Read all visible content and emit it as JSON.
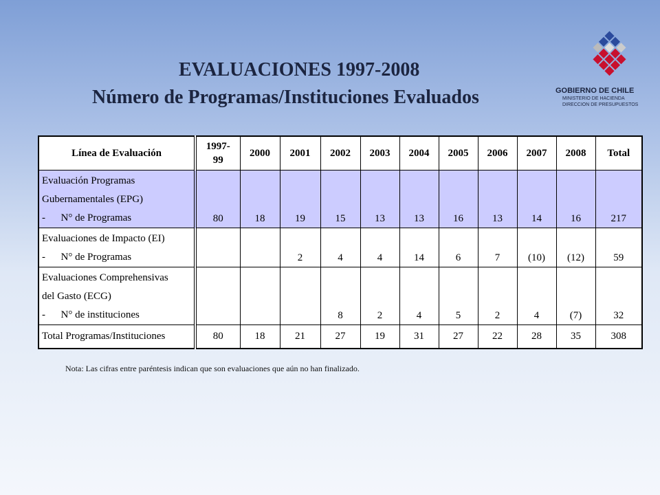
{
  "logo": {
    "name": "GOBIERNO DE CHILE",
    "lines": [
      "MINISTERIO DE HACIENDA",
      "DIRECCION DE PRESUPUESTOS"
    ]
  },
  "title": {
    "line1": "EVALUACIONES 1997-2008",
    "line2": "Número de Programas/Instituciones Evaluados"
  },
  "table": {
    "header": [
      "Línea de Evaluación",
      "1997-99",
      "2000",
      "2001",
      "2002",
      "2003",
      "2004",
      "2005",
      "2006",
      "2007",
      "2008",
      "Total"
    ],
    "rows": [
      {
        "label": [
          "Evaluación Programas",
          "Gubernamentales (EPG)",
          "-      N° de Programas"
        ],
        "values": [
          80,
          18,
          19,
          15,
          13,
          13,
          16,
          13,
          14,
          16,
          217
        ]
      },
      {
        "label": [
          "Evaluaciones de Impacto (EI)",
          "-      N° de Programas"
        ],
        "values": [
          null,
          null,
          2,
          4,
          4,
          14,
          6,
          7,
          "(10)",
          "(12)",
          59
        ]
      },
      {
        "label": [
          "Evaluaciones Comprehensivas",
          "del Gasto (ECG)",
          "-      N° de instituciones"
        ],
        "values": [
          null,
          null,
          null,
          8,
          2,
          4,
          5,
          2,
          4,
          "(7)",
          32
        ]
      },
      {
        "label": [
          "Total Programas/Instituciones"
        ],
        "values": [
          80,
          18,
          21,
          27,
          19,
          31,
          27,
          22,
          28,
          35,
          308
        ]
      }
    ]
  },
  "note": "Nota: Las cifras entre paréntesis indican que son evaluaciones que aún no han finalizado."
}
